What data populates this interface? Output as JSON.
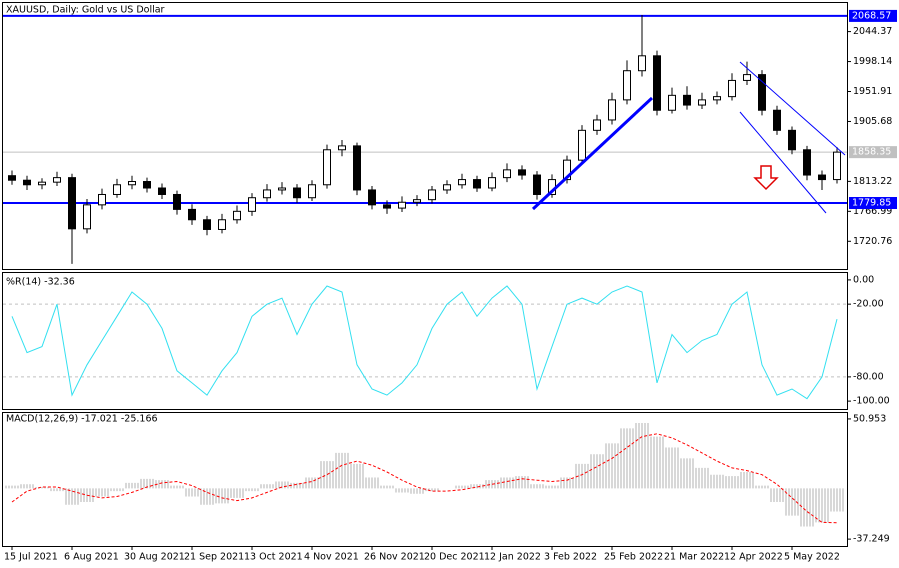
{
  "chart_data": [
    {
      "type": "candlestick",
      "title": "XAUUSD, Daily: Gold vs US Dollar",
      "categories": [
        "15 Jul 2021",
        null,
        null,
        null,
        "6 Aug 2021",
        null,
        null,
        null,
        "30 Aug 2021",
        null,
        null,
        null,
        "21 Sep 2021",
        null,
        null,
        null,
        "13 Oct 2021",
        null,
        null,
        null,
        "4 Nov 2021",
        null,
        null,
        null,
        "26 Nov 2021",
        null,
        null,
        null,
        "20 Dec 2021",
        null,
        null,
        null,
        "12 Jan 2022",
        null,
        null,
        null,
        "3 Feb 2022",
        null,
        null,
        null,
        "25 Feb 2022",
        null,
        null,
        null,
        "21 Mar 2022",
        null,
        null,
        null,
        "12 Apr 2022",
        null,
        null,
        null,
        "5 May 2022",
        null,
        null,
        null
      ],
      "open": [
        1822,
        1815,
        1808,
        1812,
        1819,
        1740,
        1777,
        1793,
        1808,
        1813,
        1803,
        1793,
        1770,
        1754,
        1739,
        1754,
        1767,
        1788,
        1800,
        1803,
        1788,
        1808,
        1862,
        1868,
        1800,
        1777,
        1772,
        1781,
        1785,
        1800,
        1808,
        1816,
        1803,
        1819,
        1831,
        1823,
        1793,
        1816,
        1846,
        1892,
        1908,
        1939,
        1984,
        2007,
        1923,
        1946,
        1931,
        1939,
        1944,
        1969,
        1978,
        1923,
        1892,
        1862,
        1823,
        1816
      ],
      "high": [
        1830,
        1822,
        1818,
        1828,
        1825,
        1786,
        1802,
        1817,
        1822,
        1819,
        1810,
        1799,
        1778,
        1760,
        1763,
        1776,
        1795,
        1809,
        1812,
        1809,
        1815,
        1870,
        1877,
        1873,
        1806,
        1784,
        1790,
        1792,
        1806,
        1815,
        1825,
        1822,
        1827,
        1841,
        1838,
        1829,
        1824,
        1853,
        1900,
        1916,
        1950,
        2000,
        2070,
        2015,
        1958,
        1960,
        1950,
        1952,
        1980,
        1998,
        1985,
        1930,
        1898,
        1868,
        1830,
        1866
      ],
      "low": [
        1808,
        1800,
        1801,
        1806,
        1686,
        1733,
        1770,
        1788,
        1801,
        1796,
        1786,
        1762,
        1746,
        1730,
        1733,
        1748,
        1760,
        1782,
        1793,
        1780,
        1783,
        1802,
        1852,
        1792,
        1770,
        1763,
        1766,
        1775,
        1779,
        1794,
        1802,
        1797,
        1798,
        1812,
        1816,
        1785,
        1788,
        1810,
        1840,
        1885,
        1901,
        1932,
        1975,
        1915,
        1918,
        1924,
        1925,
        1932,
        1938,
        1962,
        1915,
        1885,
        1855,
        1815,
        1800,
        1810
      ],
      "close": [
        1815,
        1808,
        1812,
        1819,
        1740,
        1777,
        1793,
        1808,
        1813,
        1803,
        1793,
        1770,
        1754,
        1739,
        1754,
        1767,
        1788,
        1800,
        1803,
        1788,
        1808,
        1862,
        1868,
        1800,
        1777,
        1772,
        1781,
        1785,
        1800,
        1808,
        1816,
        1803,
        1819,
        1831,
        1823,
        1793,
        1816,
        1846,
        1892,
        1908,
        1939,
        1984,
        2007,
        1923,
        1946,
        1931,
        1939,
        1944,
        1969,
        1978,
        1923,
        1892,
        1862,
        1823,
        1816,
        1858.35
      ],
      "up_color": "#ffffff",
      "down_color": "#000000",
      "ylim": [
        1678,
        2088.5
      ],
      "yticks": [
        2044.37,
        1998.14,
        1951.91,
        1905.68,
        1813.22,
        1766.99,
        1720.76
      ],
      "price_lines": [
        {
          "value": 2068.57,
          "color": "#0000ff"
        },
        {
          "value": 1858.35,
          "color": "#c0c0c0"
        },
        {
          "value": 1779.85,
          "color": "#0000ff"
        }
      ]
    },
    {
      "type": "line",
      "title": "%R(14) -32.36",
      "color": "#33e0f0",
      "values": [
        -30,
        -60,
        -55,
        -20,
        -95,
        -70,
        -50,
        -30,
        -10,
        -20,
        -40,
        -75,
        -85,
        -95,
        -75,
        -60,
        -30,
        -20,
        -15,
        -45,
        -20,
        -5,
        -10,
        -70,
        -90,
        -95,
        -85,
        -70,
        -40,
        -20,
        -10,
        -30,
        -15,
        -5,
        -20,
        -90,
        -55,
        -20,
        -15,
        -20,
        -10,
        -5,
        -10,
        -85,
        -45,
        -60,
        -50,
        -45,
        -20,
        -10,
        -70,
        -95,
        -90,
        -98,
        -80,
        -32.36
      ],
      "ylim": [
        -106.5,
        5.7
      ],
      "yticks": [
        {
          "value": 0,
          "label": "0.00"
        },
        {
          "value": -20,
          "label": "-20.00"
        },
        {
          "value": -80,
          "label": "-80.00"
        },
        {
          "value": -100,
          "label": "-100.00"
        }
      ]
    },
    {
      "type": "macd",
      "title": "MACD(12,26,9) -17.021 -25.166",
      "histogram": {
        "color": "#b0b0b0",
        "values": [
          2,
          3,
          1,
          -2,
          -12,
          -10,
          -6,
          -2,
          4,
          7,
          6,
          2,
          -6,
          -12,
          -11,
          -7,
          -2,
          3,
          5,
          4,
          8,
          20,
          26,
          18,
          8,
          2,
          -3,
          -4,
          -2,
          0,
          2,
          3,
          6,
          8,
          9,
          3,
          2,
          8,
          18,
          25,
          33,
          44,
          48,
          38,
          30,
          22,
          15,
          10,
          9,
          12,
          2,
          -10,
          -20,
          -28,
          -25,
          -17.021
        ]
      },
      "signal": {
        "color": "#ff0000",
        "values": [
          -10,
          -2,
          1,
          1,
          -2,
          -5,
          -7,
          -6,
          -3,
          1,
          4,
          5,
          2,
          -3,
          -7,
          -9,
          -7,
          -3,
          1,
          3,
          5,
          10,
          17,
          20,
          17,
          12,
          6,
          1,
          -2,
          -2,
          -1,
          1,
          3,
          5,
          7,
          6,
          5,
          6,
          10,
          16,
          22,
          30,
          38,
          40,
          37,
          32,
          26,
          20,
          15,
          13,
          10,
          3,
          -7,
          -17,
          -25,
          -25.166
        ]
      },
      "ylim": [
        -42.3,
        55.3
      ],
      "yticks": [
        50.953,
        -37.249
      ]
    }
  ]
}
